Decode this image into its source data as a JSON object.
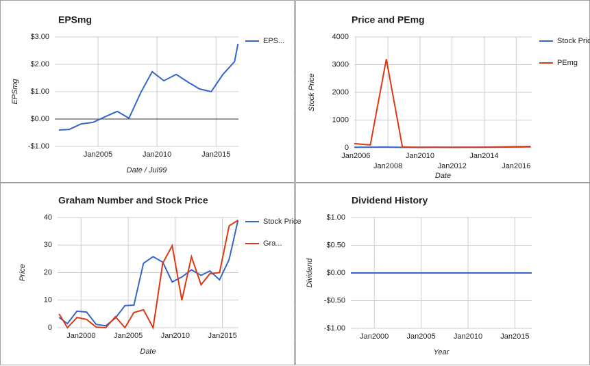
{
  "chart_data": [
    {
      "type": "line",
      "title": "EPSmg",
      "xlabel": "Date / Jul99",
      "ylabel": "EPSmg",
      "x": [
        2001.69,
        2002.56,
        2003.55,
        2004.59,
        2005.58,
        2006.63,
        2007.62,
        2008.66,
        2009.59,
        2010.58,
        2011.63,
        2012.62,
        2013.6,
        2014.59,
        2015.58,
        2016.57,
        2016.86
      ],
      "series": [
        {
          "name": "EPS...",
          "color": "#3366cc",
          "values": [
            -0.4,
            -0.38,
            -0.18,
            -0.12,
            0.08,
            0.28,
            0.03,
            1.0,
            1.73,
            1.4,
            1.63,
            1.35,
            1.1,
            1.0,
            1.63,
            2.1,
            2.75
          ]
        }
      ],
      "xlim": [
        2001.34,
        2016.9
      ],
      "xticks": [
        {
          "value": 2005,
          "label": "Jan2005"
        },
        {
          "value": 2010,
          "label": "Jan2010"
        },
        {
          "value": 2015,
          "label": "Jan2015"
        }
      ],
      "ylim": [
        -1,
        3
      ],
      "yticks": [
        {
          "value": -1,
          "label": "-$1.00"
        },
        {
          "value": 0,
          "label": "$0.00"
        },
        {
          "value": 1,
          "label": "$1.00"
        },
        {
          "value": 2,
          "label": "$2.00"
        },
        {
          "value": 3,
          "label": "$3.00"
        }
      ],
      "grid": true,
      "legend": "right"
    },
    {
      "type": "line",
      "title": "Price and PEmg",
      "xlabel": "Date",
      "ylabel": "Stock Price",
      "x": [
        2005.9,
        2006.9,
        2007.9,
        2008.9,
        2009.9,
        2010.9,
        2011.9,
        2012.9,
        2013.9,
        2014.9,
        2015.9,
        2016.9
      ],
      "series": [
        {
          "name": "Stock Price",
          "color": "#3366cc",
          "values": [
            20,
            22,
            25,
            15,
            20,
            22,
            20,
            20,
            22,
            30,
            40,
            50
          ]
        },
        {
          "name": "PEmg",
          "color": "#dc3912",
          "values": [
            150,
            100,
            3200,
            30,
            15,
            20,
            15,
            18,
            20,
            22,
            28,
            35
          ]
        }
      ],
      "xlim": [
        2005.9,
        2016.97
      ],
      "xticks": [
        {
          "value": 2006,
          "label": "Jan2006"
        },
        {
          "value": 2008,
          "label": "Jan2008"
        },
        {
          "value": 2010,
          "label": "Jan2010"
        },
        {
          "value": 2012,
          "label": "Jan2012"
        },
        {
          "value": 2014,
          "label": "Jan2014"
        },
        {
          "value": 2016,
          "label": "Jan2016"
        }
      ],
      "ylim": [
        0,
        4000
      ],
      "yticks": [
        0,
        1000,
        2000,
        3000,
        4000
      ],
      "grid": true,
      "legend": "right"
    },
    {
      "type": "line",
      "title": "Graham Number and Stock Price",
      "xlabel": "Date",
      "ylabel": "Price",
      "x": [
        1997.67,
        1998.55,
        1999.56,
        2000.58,
        2001.6,
        2002.62,
        2003.64,
        2004.65,
        2005.6,
        2006.62,
        2007.64,
        2008.66,
        2009.67,
        2010.69,
        2011.71,
        2012.73,
        2013.67,
        2014.69,
        2015.71,
        2016.65
      ],
      "series": [
        {
          "name": "Stock Price",
          "color": "#3366cc",
          "values": [
            3.7,
            1.5,
            6,
            5.7,
            1.2,
            0.7,
            3.5,
            8,
            8.2,
            23.4,
            25.8,
            23.8,
            16.6,
            18.4,
            21,
            19,
            20.6,
            17.4,
            24.8,
            39
          ]
        },
        {
          "name": "Gra...",
          "color": "#dc3912",
          "values": [
            5,
            0,
            3.7,
            3,
            0.2,
            0,
            4,
            0,
            5.5,
            6.5,
            0,
            23.4,
            29.8,
            10,
            25.8,
            15.6,
            19.6,
            20,
            37,
            39
          ]
        }
      ],
      "xlim": [
        1997.5,
        2016.7
      ],
      "xticks": [
        {
          "value": 2000,
          "label": "Jan2000"
        },
        {
          "value": 2005,
          "label": "Jan2005"
        },
        {
          "value": 2010,
          "label": "Jan2010"
        },
        {
          "value": 2015,
          "label": "Jan2015"
        }
      ],
      "ylim": [
        0,
        40
      ],
      "yticks": [
        0,
        10,
        20,
        30,
        40
      ],
      "grid": true,
      "legend": "right"
    },
    {
      "type": "line",
      "title": "Dividend History",
      "xlabel": "Year",
      "ylabel": "Dividend",
      "x": [
        1997.5,
        2000,
        2005,
        2010,
        2015,
        2016.8
      ],
      "values": [
        0,
        0,
        0,
        0,
        0,
        0
      ],
      "color": "#3366cc",
      "xlim": [
        1997.5,
        2016.8
      ],
      "xticks": [
        {
          "value": 2000,
          "label": "Jan2000"
        },
        {
          "value": 2005,
          "label": "Jan2005"
        },
        {
          "value": 2010,
          "label": "Jan2010"
        },
        {
          "value": 2015,
          "label": "Jan2015"
        }
      ],
      "ylim": [
        -1,
        1
      ],
      "yticks": [
        {
          "value": -1,
          "label": "-$1.00"
        },
        {
          "value": -0.5,
          "label": "-$0.50"
        },
        {
          "value": 0,
          "label": "$0.00"
        },
        {
          "value": 0.5,
          "label": "$0.50"
        },
        {
          "value": 1,
          "label": "$1.00"
        }
      ],
      "grid": true
    }
  ]
}
